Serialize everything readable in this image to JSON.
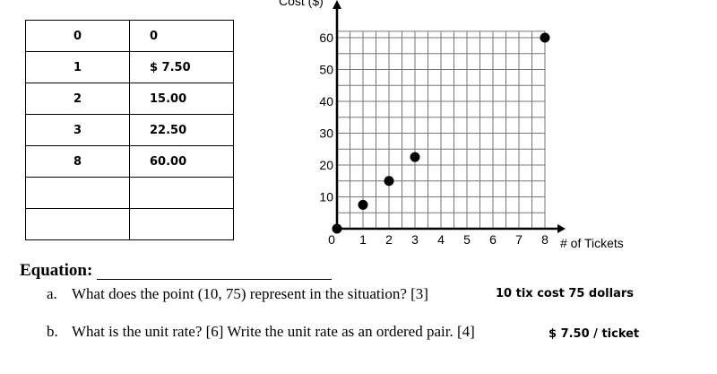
{
  "table": {
    "rows": [
      {
        "x": "0",
        "y": "0"
      },
      {
        "x": "1",
        "y": "$ 7.50"
      },
      {
        "x": "2",
        "y": "15.00"
      },
      {
        "x": "3",
        "y": "22.50"
      },
      {
        "x": "8",
        "y": "60.00"
      },
      {
        "x": "",
        "y": ""
      },
      {
        "x": "",
        "y": ""
      }
    ]
  },
  "chart_data": {
    "type": "scatter",
    "ylabel": "Cost ($)",
    "xlabel": "# of Tickets",
    "x_ticks": [
      "0",
      "1",
      "2",
      "3",
      "4",
      "5",
      "6",
      "7",
      "8"
    ],
    "y_ticks": [
      "10",
      "20",
      "30",
      "40",
      "50",
      "60"
    ],
    "xlim": [
      0,
      8
    ],
    "ylim": [
      0,
      62
    ],
    "grid": true,
    "series": [
      {
        "x": [
          0,
          1,
          2,
          3,
          8
        ],
        "y": [
          0,
          7.5,
          15,
          22.5,
          60
        ]
      }
    ]
  },
  "questions": {
    "equation_label": "Equation:",
    "a_letter": "a.",
    "a_text": "What does the point (10, 75) represent in the situation? [3]",
    "a_answer": "10 tix  cost  75 dollars",
    "b_letter": "b.",
    "b_text": "What is the unit rate? [6] Write the unit rate as an ordered pair. [4]",
    "b_answer": "$ 7.50 / ticket"
  }
}
